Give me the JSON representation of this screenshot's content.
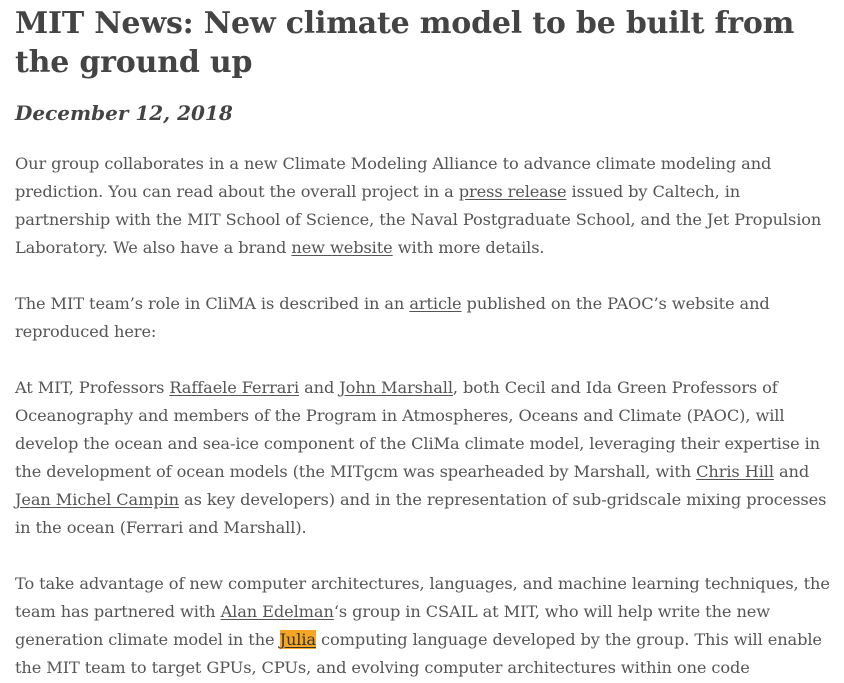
{
  "article": {
    "title": "MIT News: New climate model to be built from the ground up",
    "date": "December 12, 2018"
  },
  "p1": {
    "t1": "Our group collaborates in a new Climate Modeling Alliance to advance climate modeling and prediction. You can read about the overall project in a ",
    "link1": "press release",
    "t2": " issued by Caltech, in partnership with the MIT School of Science, the Naval Postgraduate School, and the Jet Propulsion Laboratory. We also have a brand ",
    "link2": "new website",
    "t3": " with more details."
  },
  "p2": {
    "t1": "The MIT team’s role in CliMA is described in an ",
    "link1": "article",
    "t2": " published on the PAOC’s website and reproduced here:"
  },
  "p3": {
    "t1": "At MIT, Professors ",
    "link1": "Raffaele Ferrari",
    "t2": " and ",
    "link2": "John Marshall",
    "t3": ", both Cecil and Ida Green Professors of Oceanography and members of the Program in Atmospheres, Oceans and Climate (PAOC), will develop the ocean and sea-ice component of the CliMa climate model, leveraging their expertise in the development of ocean models (the MITgcm was spearheaded by Marshall, with ",
    "link3": "Chris Hill",
    "t4": " and ",
    "link4": "Jean Michel Campin",
    "t5": " as key developers) and in the representation of sub-gridscale mixing processes in the ocean (Ferrari and Marshall)."
  },
  "p4": {
    "t1": "To take advantage of new computer architectures, languages, and machine learning techniques, the team has partnered with ",
    "link1": "Alan Edelman",
    "t2": "‘s group in CSAIL at MIT, who will help write the new generation climate model in the ",
    "link2": "Julia",
    "t3": " computing language developed by the group. This will enable the MIT team to target GPUs, CPUs, and evolving computer architectures within one code"
  },
  "colors": {
    "text": "#555555",
    "heading": "#444444",
    "highlight": "#f5a623"
  }
}
